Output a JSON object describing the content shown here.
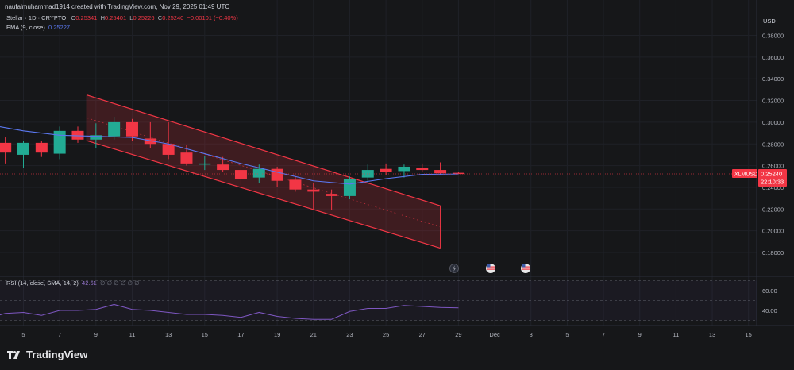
{
  "header": {
    "attribution": "naufalmuhammad1914 created with TradingView.com, Nov 29, 2025 01:49 UTC",
    "symbol_line": "Stellar · 1D · CRYPTO",
    "ohlc": {
      "o_label": "O",
      "o_value": "0.25341",
      "h_label": "H",
      "h_value": "0.25401",
      "l_label": "L",
      "l_value": "0.25226",
      "c_label": "C",
      "c_value": "0.25240",
      "change": "−0.00101 (−0.40%)"
    },
    "ema_label": "EMA (9, close)",
    "ema_value": "0.25227",
    "rsi_label": "RSI (14, close, SMA, 14, 2)",
    "rsi_value": "42.61",
    "rsi_placeholders": "∅ ∅ ∅ ∅ ∅ ∅"
  },
  "currency": "USD",
  "price_badge": {
    "symbol": "XLMUSD",
    "price": "0.25240",
    "countdown": "22:10:33"
  },
  "brand": "TradingView",
  "colors": {
    "up": "#22ab94",
    "down": "#f23645",
    "ema": "#5b78f0",
    "rsi": "#7e57c2",
    "channel": "#f23645",
    "background": "#161719"
  },
  "chart_data": [
    {
      "type": "candlestick",
      "title": "Stellar · 1D · CRYPTO",
      "y_unit": "USD",
      "ylim": [
        0.17,
        0.39
      ],
      "y_ticks": [
        "0.38000",
        "0.36000",
        "0.34000",
        "0.32000",
        "0.30000",
        "0.28000",
        "0.26000",
        "0.24000",
        "0.22000",
        "0.20000",
        "0.18000"
      ],
      "x_ticks": [
        {
          "label": "5",
          "day": 5
        },
        {
          "label": "7",
          "day": 7
        },
        {
          "label": "9",
          "day": 9
        },
        {
          "label": "11",
          "day": 11
        },
        {
          "label": "13",
          "day": 13
        },
        {
          "label": "15",
          "day": 15
        },
        {
          "label": "17",
          "day": 17
        },
        {
          "label": "19",
          "day": 19
        },
        {
          "label": "21",
          "day": 21
        },
        {
          "label": "23",
          "day": 23
        },
        {
          "label": "25",
          "day": 25
        },
        {
          "label": "27",
          "day": 27
        },
        {
          "label": "29",
          "day": 29
        },
        {
          "label": "Dec",
          "day": 31
        },
        {
          "label": "3",
          "day": 33
        },
        {
          "label": "5",
          "day": 35
        },
        {
          "label": "7",
          "day": 37
        },
        {
          "label": "9",
          "day": 39
        },
        {
          "label": "11",
          "day": 41
        },
        {
          "label": "13",
          "day": 43
        },
        {
          "label": "15",
          "day": 45
        }
      ],
      "candles": [
        {
          "day": 4,
          "o": 0.281,
          "h": 0.286,
          "l": 0.262,
          "c": 0.272
        },
        {
          "day": 5,
          "o": 0.27,
          "h": 0.283,
          "l": 0.258,
          "c": 0.281
        },
        {
          "day": 6,
          "o": 0.281,
          "h": 0.283,
          "l": 0.268,
          "c": 0.272
        },
        {
          "day": 7,
          "o": 0.271,
          "h": 0.296,
          "l": 0.266,
          "c": 0.292
        },
        {
          "day": 8,
          "o": 0.292,
          "h": 0.296,
          "l": 0.281,
          "c": 0.284
        },
        {
          "day": 9,
          "o": 0.284,
          "h": 0.299,
          "l": 0.276,
          "c": 0.288
        },
        {
          "day": 10,
          "o": 0.287,
          "h": 0.305,
          "l": 0.284,
          "c": 0.3
        },
        {
          "day": 11,
          "o": 0.3,
          "h": 0.303,
          "l": 0.283,
          "c": 0.287
        },
        {
          "day": 12,
          "o": 0.285,
          "h": 0.3,
          "l": 0.276,
          "c": 0.28
        },
        {
          "day": 13,
          "o": 0.28,
          "h": 0.3,
          "l": 0.266,
          "c": 0.27
        },
        {
          "day": 14,
          "o": 0.272,
          "h": 0.279,
          "l": 0.26,
          "c": 0.262
        },
        {
          "day": 15,
          "o": 0.262,
          "h": 0.269,
          "l": 0.256,
          "c": 0.262
        },
        {
          "day": 16,
          "o": 0.261,
          "h": 0.268,
          "l": 0.254,
          "c": 0.256
        },
        {
          "day": 17,
          "o": 0.256,
          "h": 0.263,
          "l": 0.242,
          "c": 0.248
        },
        {
          "day": 18,
          "o": 0.249,
          "h": 0.261,
          "l": 0.244,
          "c": 0.257
        },
        {
          "day": 19,
          "o": 0.257,
          "h": 0.259,
          "l": 0.24,
          "c": 0.246
        },
        {
          "day": 20,
          "o": 0.247,
          "h": 0.25,
          "l": 0.236,
          "c": 0.238
        },
        {
          "day": 21,
          "o": 0.238,
          "h": 0.244,
          "l": 0.22,
          "c": 0.236
        },
        {
          "day": 22,
          "o": 0.234,
          "h": 0.238,
          "l": 0.219,
          "c": 0.232
        },
        {
          "day": 23,
          "o": 0.232,
          "h": 0.25,
          "l": 0.229,
          "c": 0.248
        },
        {
          "day": 24,
          "o": 0.249,
          "h": 0.261,
          "l": 0.244,
          "c": 0.256
        },
        {
          "day": 25,
          "o": 0.257,
          "h": 0.262,
          "l": 0.251,
          "c": 0.254
        },
        {
          "day": 26,
          "o": 0.255,
          "h": 0.261,
          "l": 0.249,
          "c": 0.259
        },
        {
          "day": 27,
          "o": 0.258,
          "h": 0.262,
          "l": 0.254,
          "c": 0.256
        },
        {
          "day": 28,
          "o": 0.256,
          "h": 0.263,
          "l": 0.251,
          "c": 0.253
        },
        {
          "day": 29,
          "o": 0.2534,
          "h": 0.254,
          "l": 0.2523,
          "c": 0.2524
        }
      ],
      "ema_9": [
        {
          "day": 3,
          "v": 0.298
        },
        {
          "day": 5,
          "v": 0.292
        },
        {
          "day": 7,
          "v": 0.288
        },
        {
          "day": 9,
          "v": 0.287
        },
        {
          "day": 11,
          "v": 0.286
        },
        {
          "day": 13,
          "v": 0.28
        },
        {
          "day": 15,
          "v": 0.271
        },
        {
          "day": 17,
          "v": 0.262
        },
        {
          "day": 19,
          "v": 0.254
        },
        {
          "day": 21,
          "v": 0.246
        },
        {
          "day": 23,
          "v": 0.243
        },
        {
          "day": 25,
          "v": 0.248
        },
        {
          "day": 27,
          "v": 0.252
        },
        {
          "day": 29,
          "v": 0.2523
        }
      ],
      "descending_channel": {
        "upper": [
          {
            "day": 8.5,
            "v": 0.325
          },
          {
            "day": 28,
            "v": 0.223
          }
        ],
        "lower": [
          {
            "day": 8.5,
            "v": 0.283
          },
          {
            "day": 28,
            "v": 0.184
          }
        ]
      },
      "last_price": 0.2524
    },
    {
      "type": "line",
      "title": "RSI (14, close, SMA, 14, 2)",
      "ylim": [
        30,
        70
      ],
      "y_ticks": [
        "60.00",
        "40.00"
      ],
      "series": [
        {
          "name": "RSI (14, close, SMA, 14, 2)",
          "points": [
            {
              "day": 3,
              "v": 32
            },
            {
              "day": 4,
              "v": 37
            },
            {
              "day": 5,
              "v": 38
            },
            {
              "day": 6,
              "v": 35
            },
            {
              "day": 7,
              "v": 40
            },
            {
              "day": 8,
              "v": 40
            },
            {
              "day": 9,
              "v": 41
            },
            {
              "day": 10,
              "v": 46
            },
            {
              "day": 11,
              "v": 41
            },
            {
              "day": 12,
              "v": 40
            },
            {
              "day": 13,
              "v": 38
            },
            {
              "day": 14,
              "v": 36
            },
            {
              "day": 15,
              "v": 36
            },
            {
              "day": 16,
              "v": 35
            },
            {
              "day": 17,
              "v": 33
            },
            {
              "day": 18,
              "v": 38
            },
            {
              "day": 19,
              "v": 34
            },
            {
              "day": 20,
              "v": 32
            },
            {
              "day": 21,
              "v": 31
            },
            {
              "day": 22,
              "v": 31
            },
            {
              "day": 23,
              "v": 39
            },
            {
              "day": 24,
              "v": 42
            },
            {
              "day": 25,
              "v": 42
            },
            {
              "day": 26,
              "v": 45
            },
            {
              "day": 27,
              "v": 44
            },
            {
              "day": 28,
              "v": 43
            },
            {
              "day": 29,
              "v": 42.61
            }
          ]
        }
      ]
    }
  ]
}
